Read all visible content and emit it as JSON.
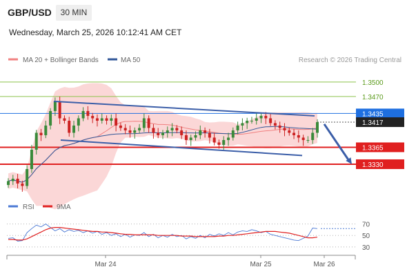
{
  "header": {
    "pair": "GBP/USD",
    "timeframe": "30 MIN",
    "datetime": "Wednesday, March 25, 2026 10:12:41 AM CET"
  },
  "legend": {
    "ma20": "MA 20 + Bollinger Bands",
    "ma50": "MA 50",
    "copyright": "Research © 2026 Trading Central",
    "rsi": "RSI",
    "ma9": "9MA"
  },
  "colors": {
    "bull": "#3a8a3a",
    "bear": "#cc2222",
    "band": "#f9c9c9",
    "ma20": "#f08080",
    "ma50": "#2f5597",
    "trendline": "#3b5ea8",
    "resistance": "#8bc34a",
    "pivot": "#1e6fe0",
    "support": "#e02020",
    "current": "#222222"
  },
  "chart_data": [
    {
      "type": "candlestick",
      "x_ticks": [
        "Mar 24",
        "Mar 25",
        "Mar 26"
      ],
      "y_range": [
        1.327,
        1.3527
      ],
      "levels": [
        {
          "value": 1.35,
          "label": "1.3500",
          "kind": "resistance"
        },
        {
          "value": 1.347,
          "label": "1.3470",
          "kind": "resistance"
        },
        {
          "value": 1.3435,
          "label": "1.3435",
          "kind": "pivot"
        },
        {
          "value": 1.3417,
          "label": "1.3417",
          "kind": "current"
        },
        {
          "value": 1.3365,
          "label": "1.3365",
          "kind": "support"
        },
        {
          "value": 1.333,
          "label": "1.3330",
          "kind": "support"
        }
      ],
      "close_series": [
        1.3295,
        1.33,
        1.329,
        1.3285,
        1.332,
        1.336,
        1.3395,
        1.339,
        1.341,
        1.344,
        1.346,
        1.3425,
        1.342,
        1.3395,
        1.341,
        1.3425,
        1.344,
        1.343,
        1.3425,
        1.342,
        1.3425,
        1.342,
        1.3425,
        1.341,
        1.3405,
        1.34,
        1.3395,
        1.34,
        1.3405,
        1.3425,
        1.3405,
        1.3395,
        1.339,
        1.3395,
        1.34,
        1.3405,
        1.34,
        1.339,
        1.338,
        1.3385,
        1.339,
        1.34,
        1.3395,
        1.3385,
        1.3375,
        1.337,
        1.338,
        1.3385,
        1.34,
        1.341,
        1.3415,
        1.342,
        1.342,
        1.3425,
        1.343,
        1.3425,
        1.3415,
        1.341,
        1.3405,
        1.34,
        1.3395,
        1.339,
        1.3385,
        1.338,
        1.338,
        1.3395,
        1.3417
      ],
      "trendlines": [
        {
          "from": 1.346,
          "to": 1.343
        },
        {
          "from": 1.338,
          "to": 1.3348
        }
      ],
      "forecast": {
        "from": 1.3413,
        "to": 1.333
      }
    },
    {
      "type": "line",
      "y_ticks": [
        70,
        50,
        30
      ],
      "y_range": [
        25,
        78
      ],
      "series": [
        {
          "name": "RSI",
          "values": [
            45,
            46,
            40,
            41,
            55,
            62,
            68,
            65,
            70,
            64,
            58,
            62,
            56,
            60,
            57,
            59,
            55,
            58,
            54,
            57,
            52,
            55,
            50,
            53,
            48,
            52,
            47,
            51,
            50,
            55,
            48,
            52,
            46,
            50,
            47,
            52,
            48,
            50,
            44,
            48,
            45,
            50,
            46,
            52,
            49,
            53,
            50,
            55,
            51,
            56,
            58,
            57,
            60,
            58,
            55,
            57,
            52,
            50,
            48,
            46,
            44,
            42,
            41,
            45,
            49,
            63,
            62
          ]
        },
        {
          "name": "9MA",
          "values": [
            43,
            43,
            42,
            42,
            44,
            48,
            52,
            56,
            60,
            63,
            64,
            64,
            63,
            62,
            61,
            60,
            59,
            58,
            57,
            57,
            56,
            56,
            55,
            54,
            53,
            52,
            52,
            51,
            51,
            51,
            51,
            51,
            50,
            50,
            50,
            50,
            50,
            49,
            49,
            49,
            48,
            48,
            48,
            48,
            48,
            49,
            49,
            50,
            50,
            51,
            52,
            53,
            54,
            55,
            56,
            57,
            57,
            57,
            56,
            55,
            54,
            52,
            50,
            48,
            46,
            46,
            47
          ]
        }
      ]
    }
  ]
}
